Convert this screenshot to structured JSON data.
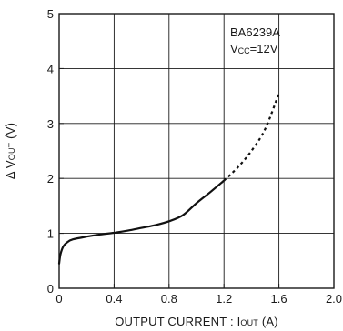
{
  "chart_data": {
    "type": "line",
    "title": "",
    "xlabel": "OUTPUT CURRENT : I",
    "xlabel_sub": "OUT",
    "xlabel_unit": " (A)",
    "ylabel": "Δ V",
    "ylabel_sub": "OUT",
    "ylabel_unit": " (V)",
    "xlim": [
      0,
      2.0
    ],
    "ylim": [
      0,
      5
    ],
    "x_ticks": [
      "0",
      "0.4",
      "0.8",
      "1.2",
      "1.6",
      "2.0"
    ],
    "y_ticks": [
      "0",
      "1",
      "2",
      "3",
      "4",
      "5"
    ],
    "grid": true,
    "annotation": {
      "device": "BA6239A",
      "vcc_prefix": "V",
      "vcc_sub": "CC",
      "vcc_value": "=12V"
    },
    "series": [
      {
        "style": "solid",
        "x": [
          0,
          0.01,
          0.03,
          0.06,
          0.1,
          0.2,
          0.3,
          0.4,
          0.5,
          0.6,
          0.7,
          0.8,
          0.9,
          1.0,
          1.1,
          1.2
        ],
        "y": [
          0.45,
          0.62,
          0.76,
          0.84,
          0.89,
          0.94,
          0.98,
          1.01,
          1.05,
          1.1,
          1.15,
          1.22,
          1.33,
          1.55,
          1.75,
          1.96
        ]
      },
      {
        "style": "dashed",
        "x": [
          1.2,
          1.3,
          1.4,
          1.5,
          1.6
        ],
        "y": [
          1.96,
          2.2,
          2.5,
          2.9,
          3.55
        ]
      }
    ]
  }
}
